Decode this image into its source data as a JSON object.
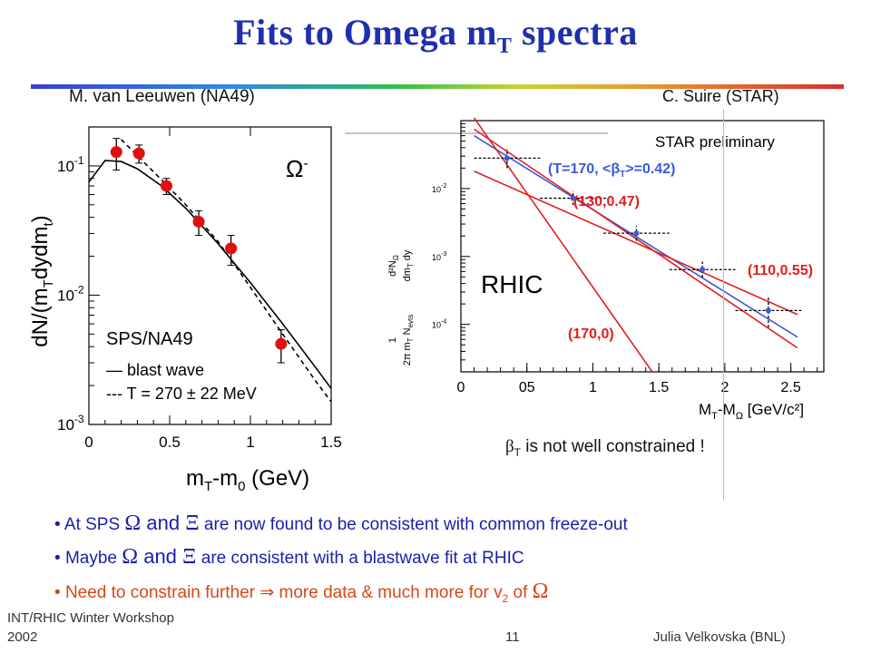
{
  "slide": {
    "title_main": "Fits to Omega m",
    "title_sub": "T",
    "title_tail": " spectra",
    "credit_left": "M. van Leeuwen (NA49)",
    "credit_right": "C. Suire (STAR)",
    "note_beta": "is not well constrained !",
    "note_beta_symbol": "β",
    "note_beta_sub": "T",
    "bullets": [
      {
        "pre": "At SPS ",
        "omega": "Ω",
        "and": " and ",
        "xi": "Ξ",
        "post": " are now found to be consistent with common freeze-out"
      },
      {
        "pre": "Maybe ",
        "omega": "Ω",
        "and": " and ",
        "xi": "Ξ",
        "post": " are consistent with a blastwave fit at RHIC"
      },
      {
        "pre": "Need to constrain further ",
        "arrow": "⇒",
        "post": " more data & much more for v",
        "sub": "2",
        "post2": " of ",
        "omega": "Ω"
      }
    ],
    "footer_left_1": "INT/RHIC Winter Workshop",
    "footer_left_2": "2002",
    "page_number": "11",
    "footer_right": "Julia Velkovska (BNL)",
    "colors": {
      "title": "#1f2fb0",
      "bullet_blue": "#1a1fa8",
      "bullet_red": "#d8461b",
      "fit_red": "#e02020",
      "fit_blue": "#3a5ad8"
    }
  },
  "chart_data": [
    {
      "type": "scatter",
      "title": "SPS/NA49",
      "particle_label": "Ω",
      "particle_sup": "-",
      "xlabel": "m",
      "xlabel_sub1": "T",
      "xlabel_mid": "-m",
      "xlabel_sub2": "0",
      "xlabel_unit": " (GeV)",
      "ylabel": "dN/(m",
      "ylabel_sub1": "T",
      "ylabel_mid": "dydm",
      "ylabel_sub2": "t",
      "ylabel_end": ")",
      "xlim": [
        0,
        1.5
      ],
      "ylim": [
        0.001,
        0.2
      ],
      "yscale": "log",
      "xticks": [
        "0",
        "0.5",
        "1",
        "1.5"
      ],
      "yticks": [
        "10",
        "10",
        "10"
      ],
      "ytick_exps": [
        "-1",
        "-2",
        "-3"
      ],
      "points": {
        "x": [
          0.17,
          0.31,
          0.48,
          0.68,
          0.88,
          1.19
        ],
        "y": [
          0.128,
          0.125,
          0.07,
          0.037,
          0.023,
          0.0042
        ],
        "err": [
          0.035,
          0.02,
          0.01,
          0.008,
          0.006,
          0.0012
        ]
      },
      "series": [
        {
          "name": "blast wave",
          "style": "solid",
          "x": [
            0,
            0.1,
            0.2,
            0.3,
            0.45,
            0.6,
            0.8,
            1.0,
            1.2,
            1.4,
            1.5
          ],
          "y": [
            0.075,
            0.11,
            0.108,
            0.095,
            0.07,
            0.047,
            0.025,
            0.0125,
            0.006,
            0.0028,
            0.0019
          ]
        },
        {
          "name": "T = 270 ± 22 MeV",
          "style": "dashed",
          "x": [
            0.2,
            0.3,
            0.45,
            0.6,
            0.8,
            1.0,
            1.2,
            1.4,
            1.5
          ],
          "y": [
            0.16,
            0.12,
            0.078,
            0.05,
            0.026,
            0.0115,
            0.005,
            0.0022,
            0.0015
          ]
        }
      ],
      "legend": [
        "— blast wave",
        "--- T = 270 ± 22 MeV"
      ]
    },
    {
      "type": "scatter",
      "annotation_region": "RHIC",
      "annotation_prelim": "STAR preliminary",
      "xlabel": "M",
      "xlabel_sub1": "T",
      "xlabel_mid": "-M",
      "xlabel_sub2": "Ω",
      "xlabel_unit": " [GeV/c²]",
      "ylabel_top": "d²N",
      "ylabel_top_sub": "Ω",
      "ylabel_top2": "dm",
      "ylabel_top2_sub": "T",
      "ylabel_top3": " dy",
      "ylabel_bottom": "1",
      "ylabel_bottom2": "2π m",
      "ylabel_bottom2_sub": "T",
      "ylabel_bottom3": " N",
      "ylabel_bottom3_sub": "evts",
      "xlim": [
        0,
        2.75
      ],
      "ylim": [
        2e-05,
        0.1
      ],
      "yscale": "log",
      "xticks": [
        "0",
        "05",
        "1",
        "1.5",
        "2",
        "2.5"
      ],
      "yticks": [
        "10",
        "10",
        "10",
        "10"
      ],
      "ytick_exps": [
        "-2",
        "-3",
        "-4",
        "-5"
      ],
      "points": {
        "x": [
          0.35,
          0.85,
          1.33,
          1.83,
          2.33
        ],
        "y": [
          0.028,
          0.0072,
          0.0022,
          0.00064,
          0.00016
        ],
        "xerr": [
          0.25,
          0.25,
          0.25,
          0.25,
          0.25
        ],
        "yerr_lo": [
          0.008,
          0.0015,
          0.0005,
          0.00015,
          7e-05
        ],
        "yerr_hi": [
          0.01,
          0.002,
          0.0006,
          0.0002,
          9e-05
        ]
      },
      "series": [
        {
          "name": "(T=170, <β_T>=0.42)",
          "color": "blue",
          "x": [
            0.1,
            2.55
          ],
          "y": [
            0.06,
            6.5e-05
          ]
        },
        {
          "name": "(130,0.47)",
          "color": "red",
          "x": [
            0.1,
            2.55
          ],
          "y": [
            0.075,
            4.5e-05
          ]
        },
        {
          "name": "(110,0.55)",
          "color": "red",
          "x": [
            0.1,
            2.55
          ],
          "y": [
            0.018,
            0.00014
          ]
        },
        {
          "name": "(170,0)",
          "color": "red",
          "x": [
            0.1,
            1.45
          ],
          "y": [
            0.11,
            2e-05
          ]
        }
      ],
      "labels": [
        "(T=170, <",
        "β",
        "T",
        ">=0.42)",
        "(130,0.47)",
        "(110,0.55)",
        "(170,0)"
      ]
    }
  ]
}
